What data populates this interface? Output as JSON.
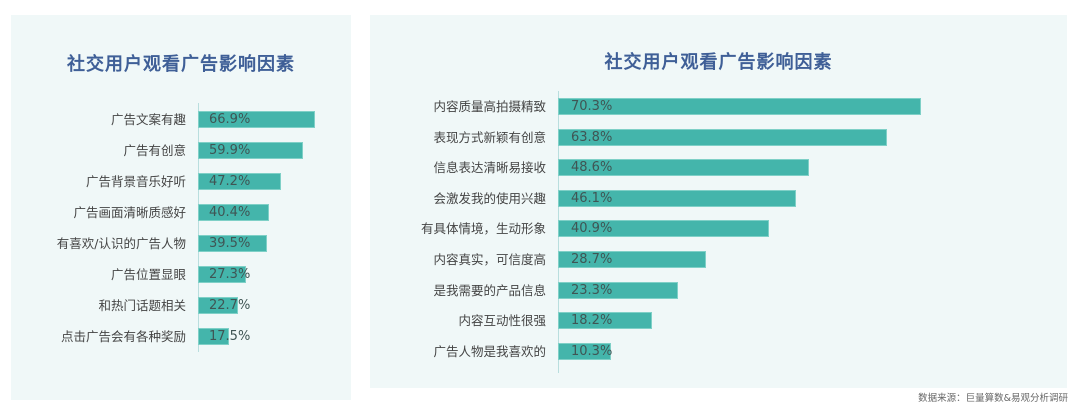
{
  "chart_data": [
    {
      "type": "bar",
      "orientation": "horizontal",
      "title": "社交用户观看广告影响因素",
      "categories": [
        "广告文案有趣",
        "广告有创意",
        "广告背景音乐好听",
        "广告画面清晰质感好",
        "有喜欢/认识的广告人物",
        "广告位置显眼",
        "和热门话题相关",
        "点击广告会有各种奖励"
      ],
      "values": [
        66.9,
        59.9,
        47.2,
        40.4,
        39.5,
        27.3,
        22.7,
        17.5
      ],
      "value_labels": [
        "66.9%",
        "59.9%",
        "47.2%",
        "40.4%",
        "39.5%",
        "27.3%",
        "22.7%",
        "17.5%"
      ],
      "unit": "%",
      "xlabel": "",
      "ylabel": "",
      "grid": false,
      "legend": "none",
      "color": "#44b5ab"
    },
    {
      "type": "bar",
      "orientation": "horizontal",
      "title": "社交用户观看广告影响因素",
      "categories": [
        "内容质量高拍摄精致",
        "表现方式新颖有创意",
        "信息表达清晰易接收",
        "会激发我的使用兴趣",
        "有具体情境，生动形象",
        "内容真实，可信度高",
        "是我需要的产品信息",
        "内容互动性很强",
        "广告人物是我喜欢的"
      ],
      "values": [
        70.3,
        63.8,
        48.6,
        46.1,
        40.9,
        28.7,
        23.3,
        18.2,
        10.3
      ],
      "value_labels": [
        "70.3%",
        "63.8%",
        "48.6%",
        "46.1%",
        "40.9%",
        "28.7%",
        "23.3%",
        "18.2%",
        "10.3%"
      ],
      "unit": "%",
      "xlabel": "",
      "ylabel": "",
      "grid": false,
      "legend": "none",
      "color": "#44b5ab"
    }
  ],
  "left": {
    "title": "社交用户观看广告影响因素",
    "rows": [
      {
        "label": "广告文案有趣",
        "value": 66.9,
        "text": "66.9%"
      },
      {
        "label": "广告有创意",
        "value": 59.9,
        "text": "59.9%"
      },
      {
        "label": "广告背景音乐好听",
        "value": 47.2,
        "text": "47.2%"
      },
      {
        "label": "广告画面清晰质感好",
        "value": 40.4,
        "text": "40.4%"
      },
      {
        "label": "有喜欢/认识的广告人物",
        "value": 39.5,
        "text": "39.5%"
      },
      {
        "label": "广告位置显眼",
        "value": 27.3,
        "text": "27.3%"
      },
      {
        "label": "和热门话题相关",
        "value": 22.7,
        "text": "22.7%"
      },
      {
        "label": "点击广告会有各种奖励",
        "value": 17.5,
        "text": "17.5%"
      }
    ]
  },
  "right": {
    "title": "社交用户观看广告影响因素",
    "rows": [
      {
        "label": "内容质量高拍摄精致",
        "value": 70.3,
        "text": "70.3%"
      },
      {
        "label": "表现方式新颖有创意",
        "value": 63.8,
        "text": "63.8%"
      },
      {
        "label": "信息表达清晰易接收",
        "value": 48.6,
        "text": "48.6%"
      },
      {
        "label": "会激发我的使用兴趣",
        "value": 46.1,
        "text": "46.1%"
      },
      {
        "label": "有具体情境，生动形象",
        "value": 40.9,
        "text": "40.9%"
      },
      {
        "label": "内容真实，可信度高",
        "value": 28.7,
        "text": "28.7%"
      },
      {
        "label": "是我需要的产品信息",
        "value": 23.3,
        "text": "23.3%"
      },
      {
        "label": "内容互动性很强",
        "value": 18.2,
        "text": "18.2%"
      },
      {
        "label": "广告人物是我喜欢的",
        "value": 10.3,
        "text": "10.3%"
      }
    ]
  },
  "source": "数据来源：巨量算数&易观分析调研"
}
